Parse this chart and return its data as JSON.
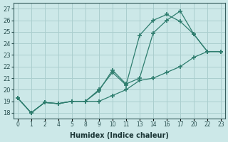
{
  "xlabel": "Humidex (Indice chaleur)",
  "background_color": "#cce8e8",
  "line_color": "#2e7d6e",
  "grid_color": "#aacece",
  "ylim": [
    17.5,
    27.5
  ],
  "yticks": [
    18,
    19,
    20,
    21,
    22,
    23,
    24,
    25,
    26,
    27
  ],
  "xlim": [
    -0.3,
    15.3
  ],
  "xtick_positions": [
    0,
    1,
    2,
    3,
    4,
    5,
    6,
    7,
    8,
    9,
    10,
    11,
    12,
    13,
    14,
    15
  ],
  "xtick_labels": [
    "0",
    "1",
    "2",
    "4",
    "5",
    "8",
    "9",
    "10",
    "11",
    "13",
    "14",
    "16",
    "17",
    "20",
    "22",
    "23"
  ],
  "line1_x": [
    0,
    1,
    2,
    3,
    4,
    5,
    6,
    7,
    8,
    9,
    10,
    11,
    12,
    13,
    14,
    15
  ],
  "line1_y": [
    19.3,
    18.0,
    18.9,
    18.8,
    19.0,
    19.0,
    19.9,
    21.7,
    20.5,
    21.0,
    24.9,
    26.0,
    26.8,
    24.8,
    23.3,
    23.3
  ],
  "line2_x": [
    0,
    1,
    2,
    3,
    4,
    5,
    6,
    7,
    8,
    9,
    10,
    11,
    12,
    13,
    14,
    15
  ],
  "line2_y": [
    19.3,
    18.0,
    18.9,
    18.8,
    19.0,
    19.0,
    20.0,
    21.5,
    20.4,
    24.7,
    26.0,
    26.5,
    25.9,
    24.8,
    23.3,
    23.3
  ],
  "line3_x": [
    0,
    1,
    2,
    3,
    4,
    5,
    6,
    7,
    8,
    9,
    10,
    11,
    12,
    13,
    14,
    15
  ],
  "line3_y": [
    19.3,
    18.0,
    18.9,
    18.8,
    19.0,
    19.0,
    19.0,
    19.5,
    20.0,
    20.8,
    21.0,
    21.5,
    22.0,
    22.8,
    23.3,
    23.3
  ]
}
